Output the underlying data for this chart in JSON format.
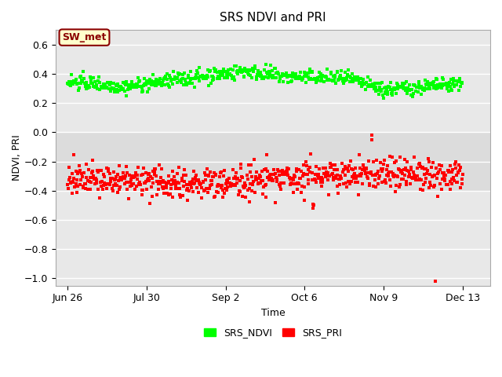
{
  "title": "SRS NDVI and PRI",
  "xlabel": "Time",
  "ylabel": "NDVI, PRI",
  "ylim": [
    -1.05,
    0.7
  ],
  "background_color": "#e8e8e8",
  "fig_background": "#ffffff",
  "annotation_text": "SW_met",
  "annotation_bbox_facecolor": "#ffffcc",
  "annotation_bbox_edgecolor": "#8b0000",
  "legend_labels": [
    "SRS_NDVI",
    "SRS_PRI"
  ],
  "ndvi_color": "#00ff00",
  "pri_color": "#ff0000",
  "marker_size": 3,
  "xtick_dates": [
    "Jun 26",
    "Jul 30",
    "Sep 2",
    "Oct 6",
    "Nov 9",
    "Dec 13"
  ],
  "xtick_positions_frac": [
    0.0,
    0.2,
    0.4,
    0.6,
    0.8,
    1.0
  ],
  "yticks": [
    -1.0,
    -0.8,
    -0.6,
    -0.4,
    -0.2,
    0.0,
    0.2,
    0.4,
    0.6
  ],
  "band_ranges": [
    [
      -0.2,
      0.0
    ],
    [
      -0.4,
      -0.2
    ]
  ],
  "band_color": "#dcdcdc"
}
